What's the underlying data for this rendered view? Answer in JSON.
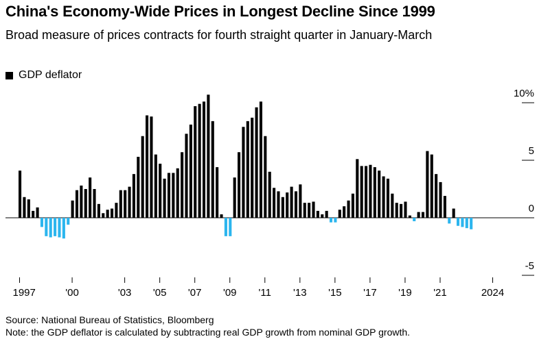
{
  "title": "China's Economy-Wide Prices in Longest Decline Since 1999",
  "subtitle": "Broad measure of prices contracts for fourth straight quarter in January-March",
  "source": "Source: National Bureau of Statistics, Bloomberg",
  "note": "Note: the GDP deflator is calculated by subtracting real GDP growth from nominal GDP growth.",
  "colors": {
    "positive": "#000000",
    "negative": "#2bb5ee",
    "axis": "#000000",
    "grid": "#000000"
  },
  "chart_data": {
    "type": "bar",
    "ylim": [
      -5,
      10
    ],
    "ytick_values": [
      10,
      5,
      0,
      -5
    ],
    "ytick_labels": [
      "10%",
      "5",
      "0",
      "-5"
    ],
    "xtick_years": [
      1997,
      2000,
      2003,
      2005,
      2007,
      2009,
      2011,
      2013,
      2015,
      2017,
      2019,
      2021,
      2024
    ],
    "xtick_labels": [
      "1997",
      "'00",
      "'03",
      "'05",
      "'07",
      "'09",
      "'11",
      "'13",
      "'15",
      "'17",
      "'19",
      "'21",
      "2024"
    ],
    "legend": [
      "GDP deflator"
    ],
    "series": [
      {
        "name": "GDP deflator",
        "start": "1997-Q1",
        "frequency": "quarterly",
        "values": [
          4.1,
          1.8,
          1.6,
          0.6,
          0.9,
          -0.8,
          -1.6,
          -1.7,
          -1.6,
          -1.7,
          -1.8,
          -0.6,
          1.5,
          2.4,
          2.8,
          2.5,
          3.5,
          2.5,
          1.2,
          0.4,
          0.7,
          0.8,
          1.3,
          2.4,
          2.4,
          2.7,
          3.8,
          5.3,
          7.1,
          8.9,
          8.8,
          5.5,
          4.7,
          3.4,
          3.9,
          3.9,
          4.3,
          5.7,
          7.3,
          8.1,
          9.7,
          9.9,
          10.1,
          10.7,
          8.4,
          4.4,
          0.3,
          -1.6,
          -1.6,
          3.5,
          5.7,
          7.9,
          8.4,
          8.7,
          9.6,
          10.1,
          7.1,
          4.0,
          2.6,
          2.3,
          1.8,
          2.2,
          2.7,
          2.3,
          2.9,
          1.3,
          1.3,
          1.4,
          0.6,
          0.3,
          0.6,
          -0.4,
          -0.4,
          0.7,
          1.0,
          1.5,
          2.1,
          5.1,
          4.5,
          4.5,
          4.6,
          4.4,
          4.1,
          3.6,
          3.4,
          2.1,
          1.3,
          1.2,
          1.4,
          0.2,
          -0.3,
          0.5,
          0.5,
          5.8,
          5.5,
          3.8,
          3.1,
          1.9,
          -0.5,
          0.8,
          -0.7,
          -0.8,
          -0.9,
          -1.0
        ]
      }
    ]
  }
}
